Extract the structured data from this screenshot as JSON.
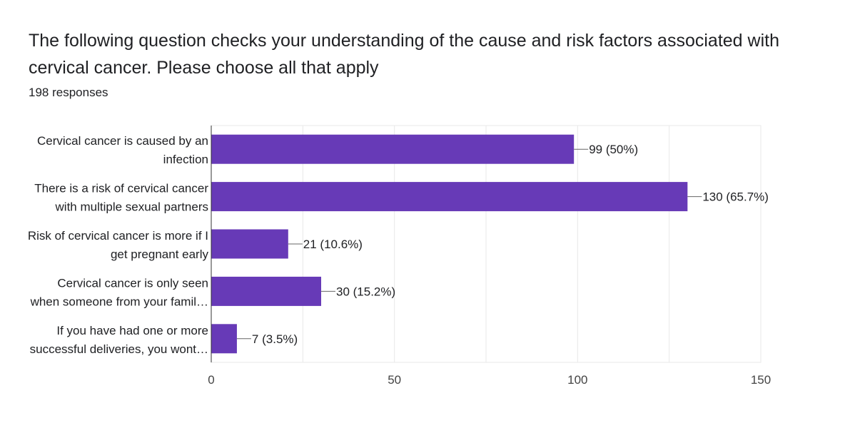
{
  "title": "The following question checks your understanding of the cause and risk factors associated with cervical cancer. Please choose all that apply",
  "responses": "198 responses",
  "colors": {
    "bar": "#673ab7",
    "grid": "#e8e8e8",
    "text": "#202124",
    "leader": "#666666"
  },
  "chart_data": {
    "type": "bar",
    "orientation": "horizontal",
    "categories": [
      [
        "Cervical cancer is caused by an",
        "infection"
      ],
      [
        "There is a risk of cervical cancer",
        "with multiple sexual partners"
      ],
      [
        "Risk of cervical cancer is more if I",
        "get pregnant early"
      ],
      [
        "Cervical cancer is only seen",
        "when someone from your famil…"
      ],
      [
        "If you have had one or more",
        "successful deliveries, you wont…"
      ]
    ],
    "values": [
      99,
      130,
      21,
      30,
      7
    ],
    "data_labels": [
      "99 (50%)",
      "130 (65.7%)",
      "21 (10.6%)",
      "30 (15.2%)",
      "7 (3.5%)"
    ],
    "xlim": [
      0,
      150
    ],
    "xticks": [
      0,
      50,
      100,
      150
    ],
    "grid": true
  }
}
